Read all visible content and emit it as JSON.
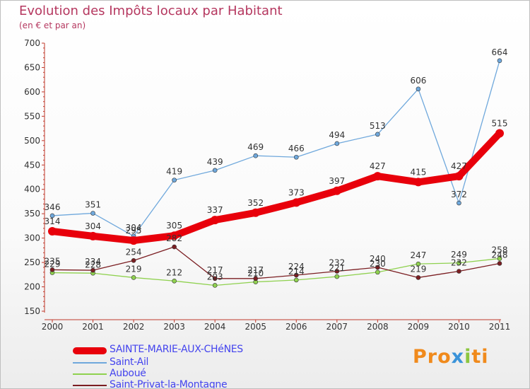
{
  "title": "Evolution des Impôts locaux par Habitant",
  "subtitle": "(en € et par an)",
  "logo": {
    "part1": "Pro",
    "part2": "x",
    "part3": "i",
    "part4": "ti"
  },
  "chart_data": {
    "type": "line",
    "title": "Evolution des Impôts locaux par Habitant",
    "subtitle": "(en € et par an)",
    "x": [
      "2000",
      "2001",
      "2002",
      "2003",
      "2004",
      "2005",
      "2006",
      "2007",
      "2008",
      "2009",
      "2010",
      "2011"
    ],
    "ylim": [
      150,
      700
    ],
    "yticks": [
      150,
      200,
      250,
      300,
      350,
      400,
      450,
      500,
      550,
      600,
      650,
      700
    ],
    "grid": false,
    "legend_position": "bottom-left",
    "series": [
      {
        "name": "SAINTE-MARIE-AUX-CHéNES",
        "color": "#e8000b",
        "values": [
          314,
          304,
          295,
          305,
          337,
          352,
          373,
          397,
          427,
          415,
          427,
          515
        ],
        "labels": [
          "314",
          "304",
          "295",
          "305",
          "337",
          "352",
          "373",
          "397",
          "427",
          "415",
          "427",
          "515"
        ]
      },
      {
        "name": "Saint-Ail",
        "color": "#6fa8dc",
        "values": [
          346,
          351,
          304,
          419,
          439,
          469,
          466,
          494,
          513,
          606,
          372,
          664
        ],
        "labels": [
          "346",
          "351",
          "304",
          "419",
          "439",
          "469",
          "466",
          "494",
          "513",
          "606",
          "372",
          "664"
        ]
      },
      {
        "name": "Auboué",
        "color": "#8fd14f",
        "values": [
          229,
          228,
          219,
          212,
          203,
          210,
          214,
          221,
          230,
          247,
          249,
          258
        ],
        "labels": [
          "229",
          "228",
          "219",
          "212",
          "203",
          "210",
          "214",
          "221",
          "230",
          "247",
          "249",
          "258"
        ]
      },
      {
        "name": "Saint-Privat-la-Montagne",
        "color": "#7b1e22",
        "values": [
          235,
          234,
          254,
          282,
          217,
          217,
          224,
          232,
          240,
          219,
          232,
          248
        ],
        "labels": [
          "235",
          "234",
          "254",
          "282",
          "217",
          "217",
          "224",
          "232",
          "240",
          "219",
          "232",
          "248"
        ]
      }
    ]
  }
}
